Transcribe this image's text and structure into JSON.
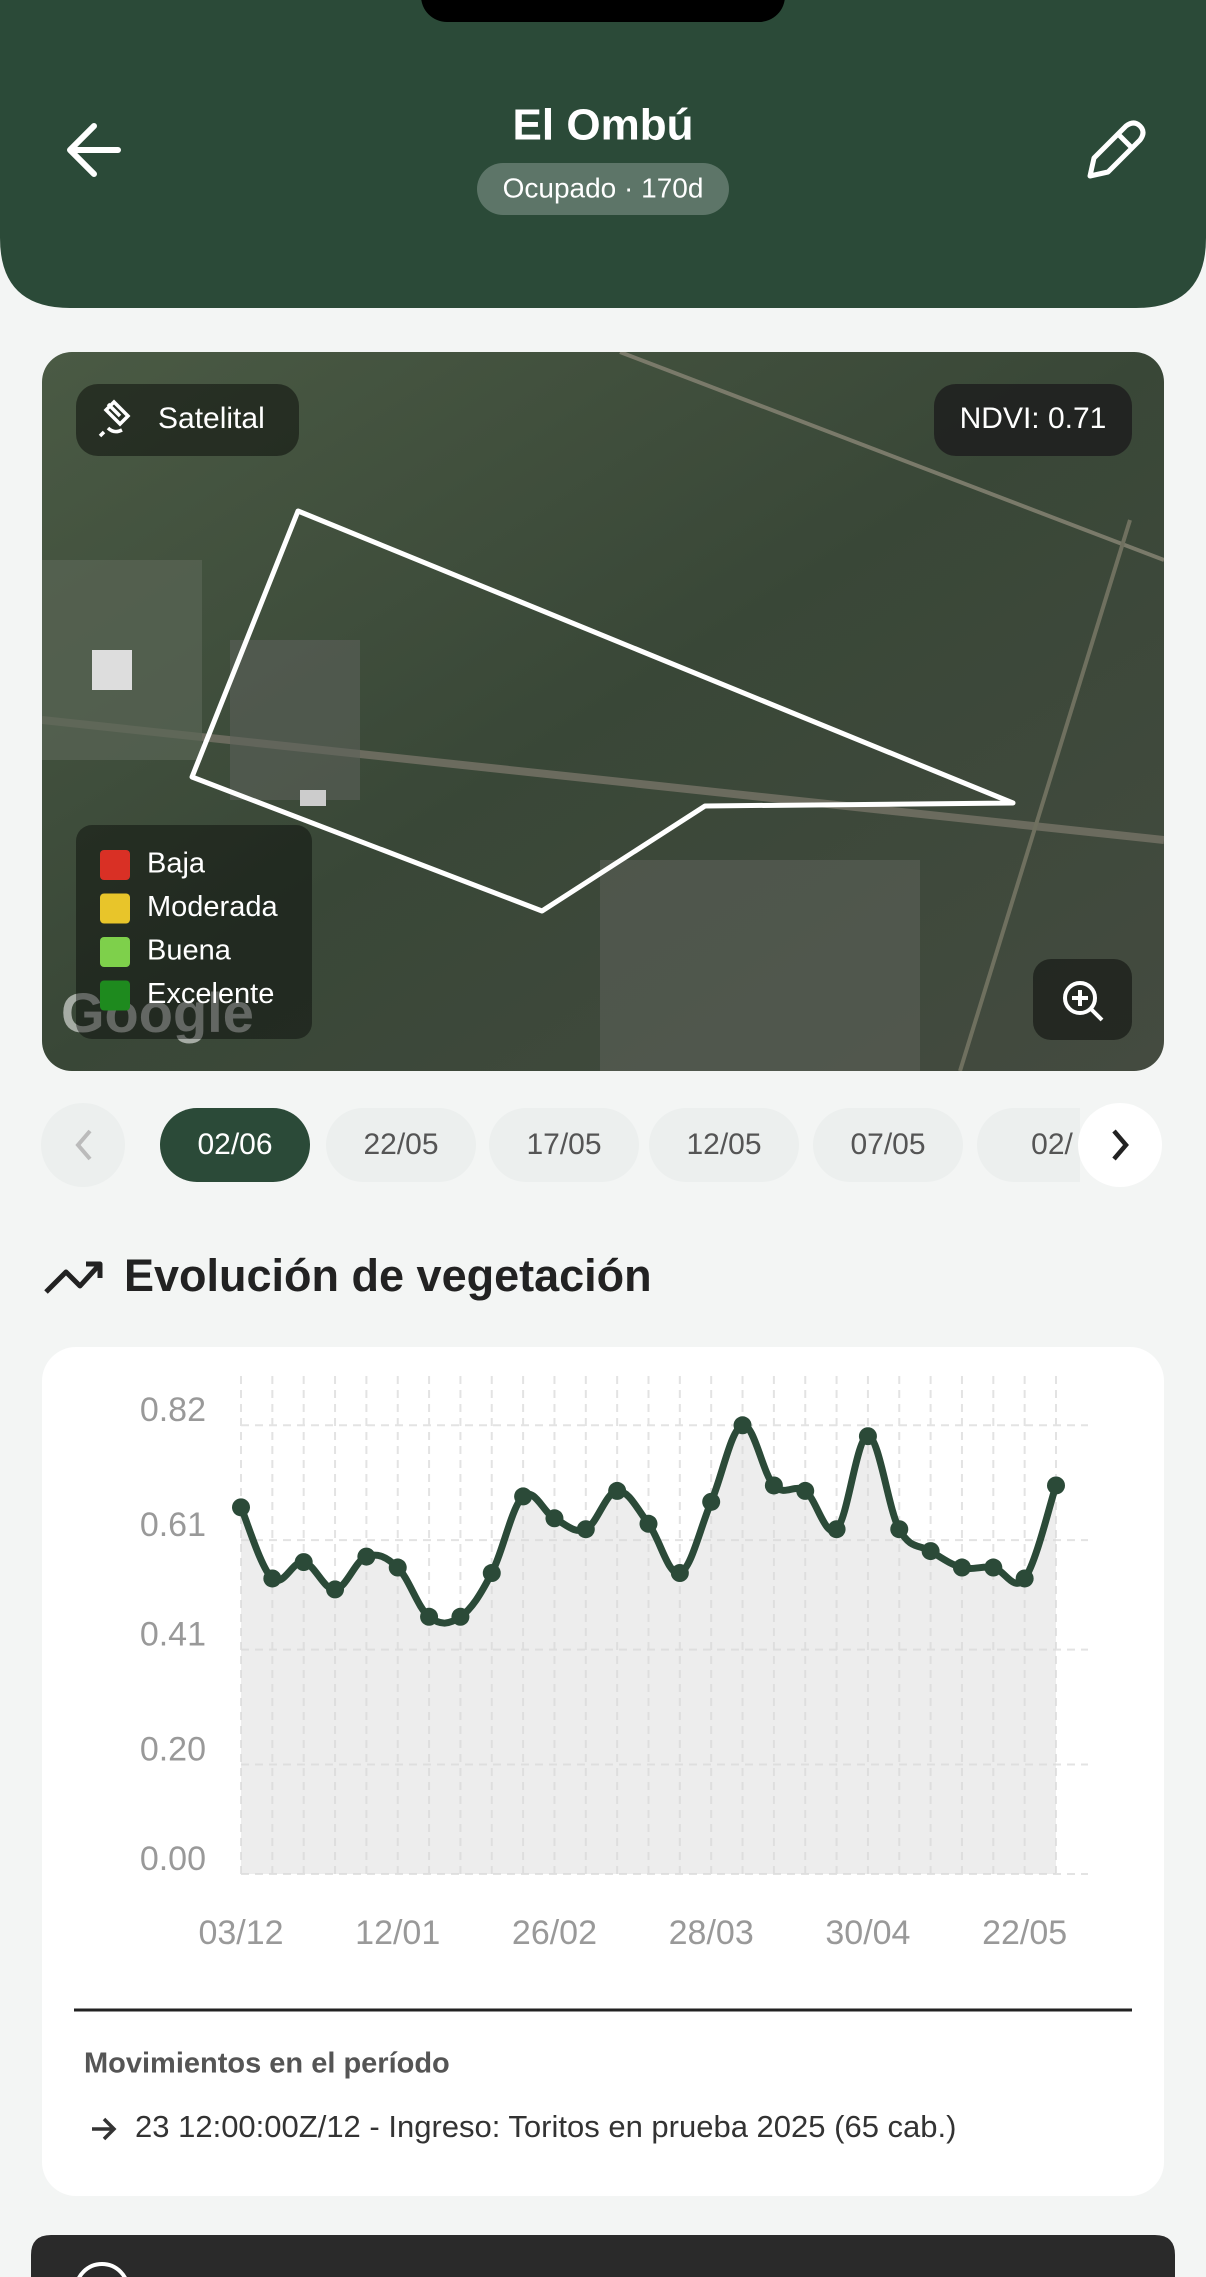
{
  "header": {
    "title": "El Ombú",
    "badge": "Ocupado · 170d"
  },
  "map": {
    "source": "Satelital",
    "ndvi": "NDVI: 0.71",
    "attribution": "Google",
    "legend": [
      {
        "label": "Baja",
        "color": "#d93025"
      },
      {
        "label": "Moderada",
        "color": "#e8c52a"
      },
      {
        "label": "Buena",
        "color": "#7ed04b"
      },
      {
        "label": "Excelente",
        "color": "#1e8a1e"
      }
    ]
  },
  "dates": [
    "02/06",
    "22/05",
    "17/05",
    "12/05",
    "07/05",
    "02/"
  ],
  "section_title": "Evolución de vegetación",
  "chart_data": {
    "type": "line",
    "categories": [
      "03/12",
      null,
      null,
      null,
      null,
      "12/01",
      null,
      null,
      null,
      null,
      "26/02",
      null,
      null,
      null,
      null,
      "28/03",
      null,
      null,
      null,
      null,
      "30/04",
      null,
      null,
      null,
      null,
      "22/05",
      null
    ],
    "series": [
      {
        "name": "NDVI",
        "color": "#2b4a38",
        "values": [
          0.67,
          0.54,
          0.57,
          0.52,
          0.58,
          0.56,
          0.47,
          0.47,
          0.55,
          0.69,
          0.65,
          0.63,
          0.7,
          0.64,
          0.55,
          0.68,
          0.82,
          0.71,
          0.7,
          0.63,
          0.8,
          0.63,
          0.59,
          0.56,
          0.56,
          0.54,
          0.71
        ]
      }
    ],
    "ylim": [
      0,
      0.91
    ],
    "yticks": [
      {
        "value": 0,
        "label": "0.00"
      },
      {
        "value": 0.2,
        "label": "0.20"
      },
      0.41,
      0.61,
      0.82
    ],
    "grid": true
  },
  "movements": {
    "title": "Movimientos en el período",
    "items": [
      "23 12:00:00Z/12 - Ingreso: Toritos en prueba 2025 (65 cab.)"
    ]
  }
}
